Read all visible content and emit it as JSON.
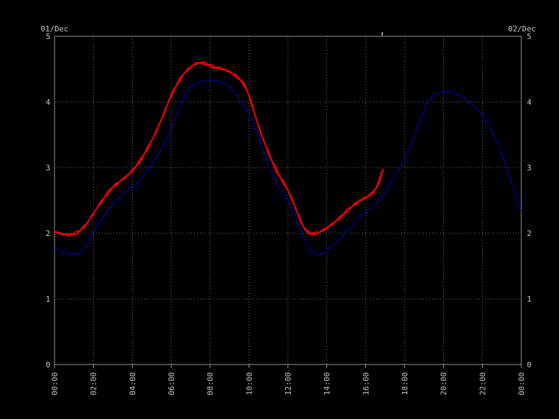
{
  "dates": {
    "left": "01/Dec",
    "right": "02/Dec"
  },
  "colors": {
    "background": "#000000",
    "border": "#999999",
    "grid": "#7a7a7a",
    "text": "#c8c8c8",
    "series_red": "#ff0000",
    "series_blue": "#0000ff"
  },
  "chart_data": {
    "type": "line",
    "title": "",
    "legend": false,
    "x_axis": {
      "range_hours": [
        0,
        24
      ],
      "tick_hours": [
        0,
        2,
        4,
        6,
        8,
        10,
        12,
        14,
        16,
        18,
        20,
        22,
        24
      ],
      "tick_labels": [
        "00:00",
        "02:00",
        "04:00",
        "06:00",
        "08:00",
        "10:00",
        "12:00",
        "14:00",
        "16:00",
        "18:00",
        "20:00",
        "22:00",
        "00:00"
      ],
      "grid": true,
      "label_rotation_deg": -90
    },
    "y_axis": {
      "range": [
        0,
        5
      ],
      "ticks": [
        0,
        1,
        2,
        3,
        4,
        5
      ],
      "tick_labels": [
        "0",
        "1",
        "2",
        "3",
        "4",
        "5"
      ],
      "sides": [
        "left",
        "right"
      ],
      "grid": true
    },
    "top_axis_marker_hour": 16.85,
    "series": [
      {
        "id": "red-solid",
        "color": "#ff0000",
        "line_style": "solid",
        "points": [
          [
            0.0,
            2.03
          ],
          [
            0.4,
            1.98
          ],
          [
            0.8,
            1.97
          ],
          [
            1.2,
            2.01
          ],
          [
            1.6,
            2.12
          ],
          [
            2.0,
            2.3
          ],
          [
            2.5,
            2.52
          ],
          [
            3.0,
            2.71
          ],
          [
            3.5,
            2.82
          ],
          [
            4.0,
            2.94
          ],
          [
            4.4,
            3.1
          ],
          [
            4.8,
            3.3
          ],
          [
            5.2,
            3.53
          ],
          [
            5.6,
            3.8
          ],
          [
            5.9,
            4.03
          ],
          [
            6.2,
            4.22
          ],
          [
            6.6,
            4.42
          ],
          [
            7.0,
            4.54
          ],
          [
            7.4,
            4.6
          ],
          [
            7.8,
            4.58
          ],
          [
            8.2,
            4.53
          ],
          [
            8.6,
            4.51
          ],
          [
            9.0,
            4.46
          ],
          [
            9.4,
            4.38
          ],
          [
            9.8,
            4.26
          ],
          [
            10.1,
            4.02
          ],
          [
            10.5,
            3.62
          ],
          [
            11.0,
            3.22
          ],
          [
            11.5,
            2.9
          ],
          [
            12.0,
            2.67
          ],
          [
            12.4,
            2.38
          ],
          [
            12.8,
            2.08
          ],
          [
            13.1,
            1.99
          ],
          [
            13.5,
            2.0
          ],
          [
            13.9,
            2.06
          ],
          [
            14.3,
            2.14
          ],
          [
            14.7,
            2.24
          ],
          [
            15.1,
            2.36
          ],
          [
            15.5,
            2.46
          ],
          [
            15.9,
            2.53
          ],
          [
            16.2,
            2.57
          ],
          [
            16.5,
            2.65
          ],
          [
            16.7,
            2.78
          ],
          [
            16.9,
            2.98
          ]
        ]
      },
      {
        "id": "blue-dotted",
        "color": "#0000ff",
        "line_style": "dotted",
        "points": [
          [
            0.0,
            1.76
          ],
          [
            0.5,
            1.7
          ],
          [
            1.0,
            1.67
          ],
          [
            1.4,
            1.7
          ],
          [
            1.7,
            1.83
          ],
          [
            2.0,
            2.0
          ],
          [
            2.5,
            2.26
          ],
          [
            3.0,
            2.44
          ],
          [
            3.5,
            2.59
          ],
          [
            4.0,
            2.71
          ],
          [
            4.4,
            2.8
          ],
          [
            4.8,
            2.96
          ],
          [
            5.2,
            3.13
          ],
          [
            5.6,
            3.33
          ],
          [
            6.0,
            3.58
          ],
          [
            6.4,
            3.92
          ],
          [
            6.7,
            4.12
          ],
          [
            7.0,
            4.22
          ],
          [
            7.4,
            4.29
          ],
          [
            8.0,
            4.34
          ],
          [
            8.5,
            4.31
          ],
          [
            9.0,
            4.24
          ],
          [
            9.3,
            4.13
          ],
          [
            9.7,
            3.95
          ],
          [
            10.0,
            3.84
          ],
          [
            10.4,
            3.54
          ],
          [
            10.9,
            3.12
          ],
          [
            11.4,
            2.78
          ],
          [
            12.0,
            2.5
          ],
          [
            12.5,
            2.18
          ],
          [
            13.0,
            1.8
          ],
          [
            13.3,
            1.68
          ],
          [
            13.7,
            1.66
          ],
          [
            14.1,
            1.74
          ],
          [
            14.6,
            1.9
          ],
          [
            15.2,
            2.08
          ],
          [
            15.9,
            2.3
          ],
          [
            16.6,
            2.48
          ],
          [
            17.0,
            2.62
          ],
          [
            17.3,
            2.8
          ],
          [
            17.8,
            3.0
          ],
          [
            18.2,
            3.25
          ],
          [
            18.6,
            3.55
          ],
          [
            19.0,
            3.88
          ],
          [
            19.4,
            4.08
          ],
          [
            19.8,
            4.15
          ],
          [
            20.2,
            4.17
          ],
          [
            20.6,
            4.13
          ],
          [
            21.0,
            4.06
          ],
          [
            21.5,
            3.96
          ],
          [
            22.0,
            3.83
          ],
          [
            22.4,
            3.62
          ],
          [
            22.8,
            3.36
          ],
          [
            23.2,
            3.04
          ],
          [
            23.6,
            2.68
          ],
          [
            24.0,
            2.32
          ]
        ]
      }
    ]
  }
}
